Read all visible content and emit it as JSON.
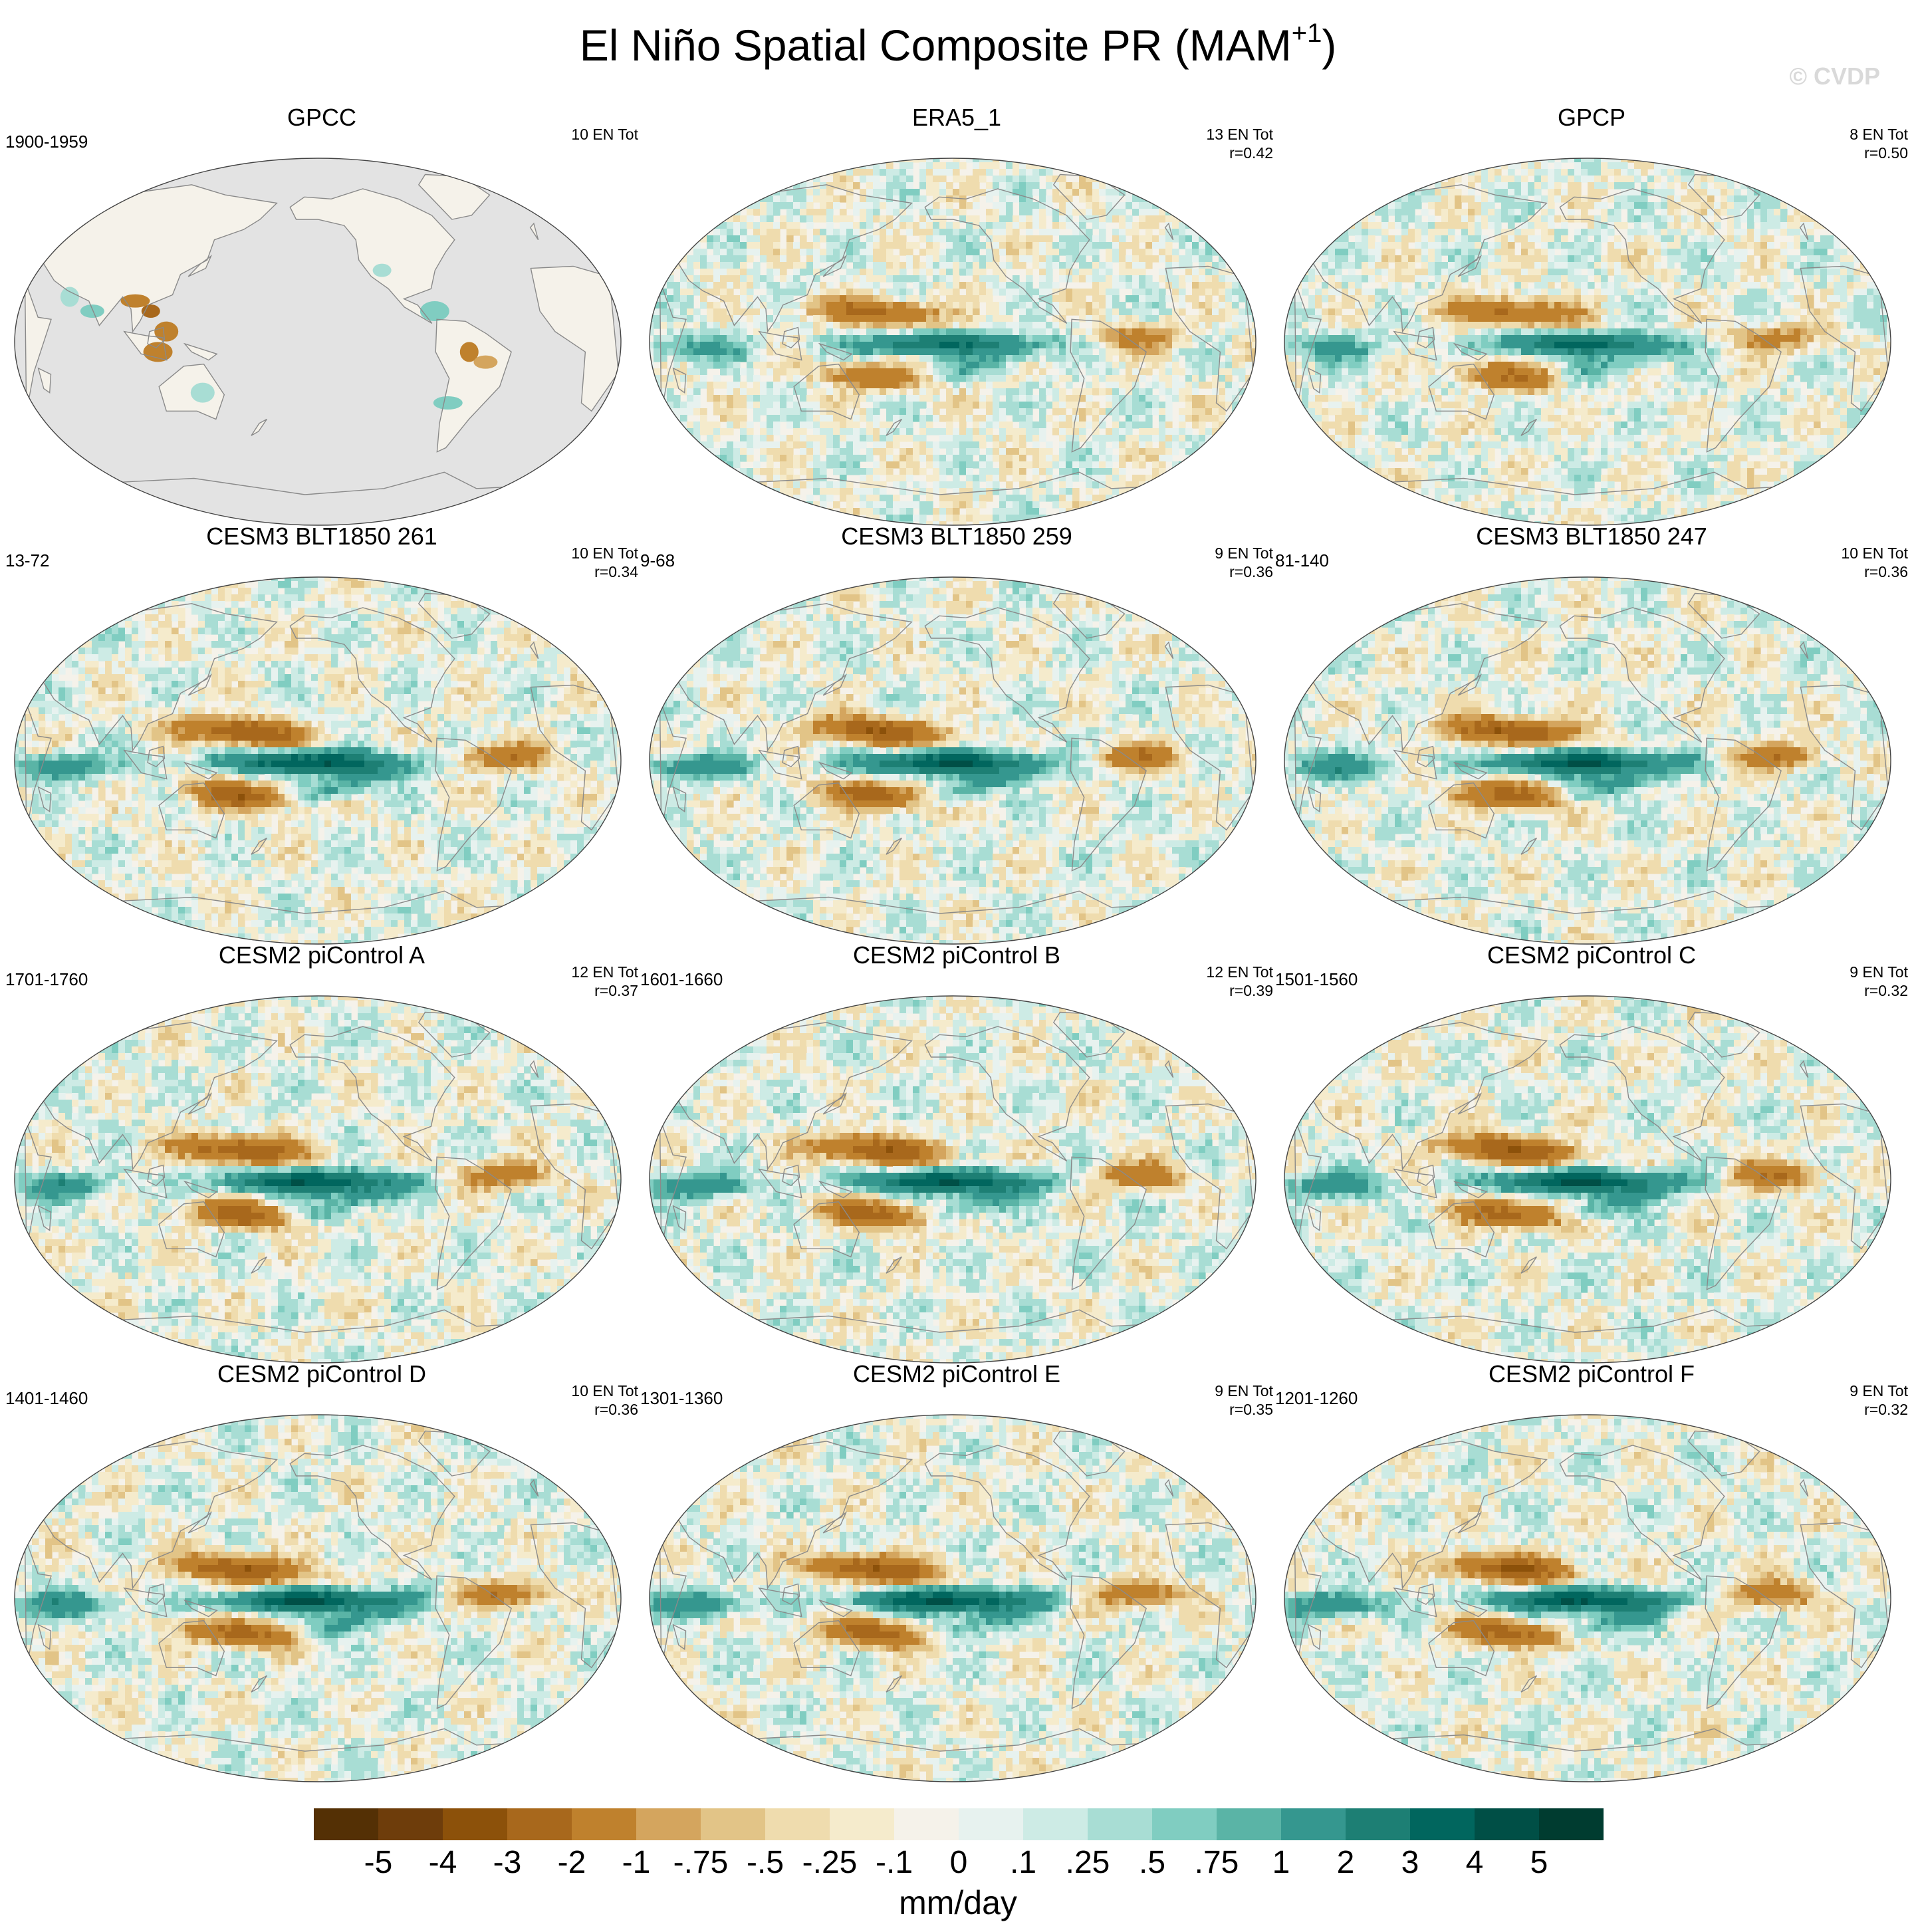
{
  "figure": {
    "title": "El Niño Spatial Composite PR (MAM",
    "title_superscript": "+1",
    "title_close": ")",
    "copyright": "© CVDP",
    "land_mask_color": "#e3e3e3",
    "coast_color": "#8a8a8a"
  },
  "panels": [
    {
      "title": "GPCC",
      "years": "1900-1959",
      "events": "10 EN Tot",
      "r": "",
      "masked": true
    },
    {
      "title": "ERA5_1",
      "years": "",
      "events": "13 EN Tot",
      "r": "r=0.42",
      "masked": false
    },
    {
      "title": "GPCP",
      "years": "",
      "events": "8 EN Tot",
      "r": "r=0.50",
      "masked": false
    },
    {
      "title": "CESM3 BLT1850 261",
      "years": "13-72",
      "events": "10 EN Tot",
      "r": "r=0.34",
      "masked": false
    },
    {
      "title": "CESM3 BLT1850 259",
      "years": "9-68",
      "events": "9 EN Tot",
      "r": "r=0.36",
      "masked": false
    },
    {
      "title": "CESM3 BLT1850 247",
      "years": "81-140",
      "events": "10 EN Tot",
      "r": "r=0.36",
      "masked": false
    },
    {
      "title": "CESM2 piControl A",
      "years": "1701-1760",
      "events": "12 EN Tot",
      "r": "r=0.37",
      "masked": false
    },
    {
      "title": "CESM2 piControl B",
      "years": "1601-1660",
      "events": "12 EN Tot",
      "r": "r=0.39",
      "masked": false
    },
    {
      "title": "CESM2 piControl C",
      "years": "1501-1560",
      "events": "9 EN Tot",
      "r": "r=0.32",
      "masked": false
    },
    {
      "title": "CESM2 piControl D",
      "years": "1401-1460",
      "events": "10 EN Tot",
      "r": "r=0.36",
      "masked": false
    },
    {
      "title": "CESM2 piControl E",
      "years": "1301-1360",
      "events": "9 EN Tot",
      "r": "r=0.35",
      "masked": false
    },
    {
      "title": "CESM2 piControl F",
      "years": "1201-1260",
      "events": "9 EN Tot",
      "r": "r=0.32",
      "masked": false
    }
  ],
  "colorbar": {
    "units": "mm/day",
    "levels": [
      "-5",
      "-4",
      "-3",
      "-2",
      "-1",
      "-.75",
      "-.5",
      "-.25",
      "-.1",
      "0",
      ".1",
      ".25",
      ".5",
      ".75",
      "1",
      "2",
      "3",
      "4",
      "5"
    ],
    "colors": [
      "#543005",
      "#6e3d0b",
      "#8c510a",
      "#a8681c",
      "#bf812d",
      "#d4a55e",
      "#e2c487",
      "#efdcae",
      "#f5ebcc",
      "#f5f2ea",
      "#e7f2ef",
      "#cdebe5",
      "#a8ddd4",
      "#80cdc1",
      "#5ab4a6",
      "#35978f",
      "#1d7f74",
      "#01665e",
      "#004f46",
      "#003c30"
    ]
  }
}
